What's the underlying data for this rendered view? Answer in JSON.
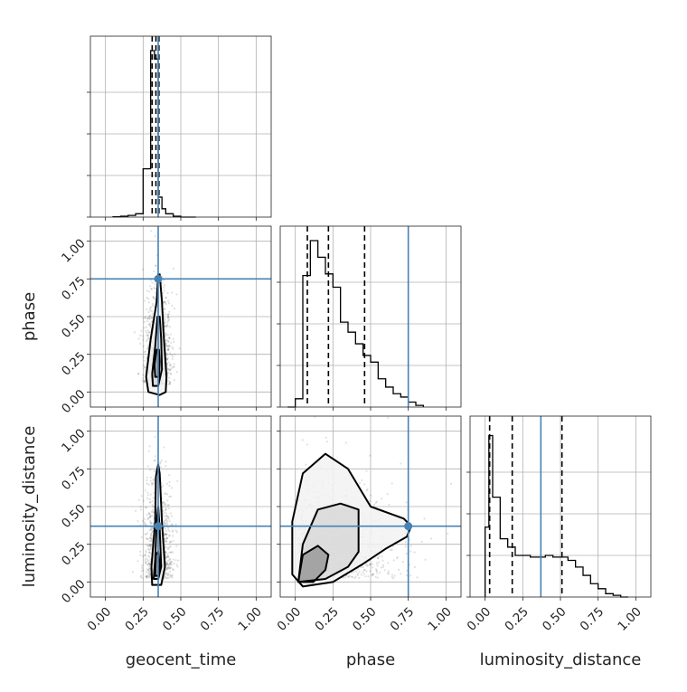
{
  "chart_data": {
    "type": "corner",
    "parameters": [
      "geocent_time",
      "phase",
      "luminosity_distance"
    ],
    "axis_labels": {
      "geocent_time": "geocent_time",
      "phase": "phase",
      "luminosity_distance": "luminosity_distance"
    },
    "range": [
      -0.1,
      1.1
    ],
    "ticks": [
      0.0,
      0.25,
      0.5,
      0.75,
      1.0
    ],
    "tick_labels": [
      "0.00",
      "0.25",
      "0.50",
      "0.75",
      "1.00"
    ],
    "grid": true,
    "truths": {
      "geocent_time": 0.35,
      "phase": 0.75,
      "luminosity_distance": 0.37
    },
    "truth_color": "#4682b4",
    "histograms": {
      "geocent_time": {
        "bin_edges": [
          0.05,
          0.1,
          0.15,
          0.2,
          0.25,
          0.3,
          0.325,
          0.35,
          0.375,
          0.4,
          0.45,
          0.5,
          0.55,
          0.6
        ],
        "counts": [
          0.002,
          0.005,
          0.01,
          0.02,
          0.29,
          1.0,
          0.95,
          0.12,
          0.05,
          0.02,
          0.005,
          0.0,
          0.0
        ],
        "quantiles": [
          0.31,
          0.335,
          0.355
        ]
      },
      "phase": {
        "bin_edges": [
          -0.05,
          0.0,
          0.05,
          0.1,
          0.15,
          0.2,
          0.25,
          0.3,
          0.35,
          0.4,
          0.45,
          0.5,
          0.55,
          0.6,
          0.65,
          0.7,
          0.75,
          0.8,
          0.85
        ],
        "counts": [
          0.0,
          0.05,
          0.79,
          1.0,
          0.9,
          0.8,
          0.72,
          0.51,
          0.45,
          0.38,
          0.31,
          0.27,
          0.17,
          0.12,
          0.08,
          0.06,
          0.03,
          0.01
        ],
        "quantiles": [
          0.08,
          0.22,
          0.46
        ]
      },
      "luminosity_distance": {
        "bin_edges": [
          0.0,
          0.025,
          0.05,
          0.1,
          0.15,
          0.2,
          0.25,
          0.3,
          0.35,
          0.4,
          0.45,
          0.5,
          0.55,
          0.6,
          0.65,
          0.7,
          0.75,
          0.8,
          0.85,
          0.9,
          0.95
        ],
        "counts": [
          0.42,
          0.97,
          0.6,
          0.35,
          0.3,
          0.25,
          0.25,
          0.24,
          0.24,
          0.25,
          0.24,
          0.24,
          0.22,
          0.18,
          0.13,
          0.08,
          0.05,
          0.02,
          0.01,
          0.0
        ],
        "quantiles": [
          0.03,
          0.18,
          0.51
        ]
      }
    },
    "scatter_2d": [
      {
        "x": "geocent_time",
        "y": "phase",
        "contours": [
          [
            [
              0.285,
              0.0
            ],
            [
              0.36,
              -0.02
            ],
            [
              0.4,
              0.0
            ],
            [
              0.405,
              0.1
            ],
            [
              0.385,
              0.4
            ],
            [
              0.375,
              0.6
            ],
            [
              0.36,
              0.78
            ],
            [
              0.35,
              0.78
            ],
            [
              0.34,
              0.6
            ],
            [
              0.3,
              0.35
            ],
            [
              0.27,
              0.1
            ]
          ],
          [
            [
              0.315,
              0.04
            ],
            [
              0.35,
              0.04
            ],
            [
              0.375,
              0.15
            ],
            [
              0.37,
              0.35
            ],
            [
              0.36,
              0.5
            ],
            [
              0.345,
              0.5
            ],
            [
              0.33,
              0.3
            ],
            [
              0.31,
              0.12
            ]
          ],
          [
            [
              0.33,
              0.1
            ],
            [
              0.355,
              0.1
            ],
            [
              0.36,
              0.2
            ],
            [
              0.355,
              0.28
            ],
            [
              0.34,
              0.28
            ],
            [
              0.325,
              0.18
            ]
          ]
        ]
      },
      {
        "x": "geocent_time",
        "y": "luminosity_distance",
        "contours": [
          [
            [
              0.31,
              -0.02
            ],
            [
              0.37,
              -0.02
            ],
            [
              0.395,
              0.1
            ],
            [
              0.375,
              0.4
            ],
            [
              0.36,
              0.72
            ],
            [
              0.35,
              0.78
            ],
            [
              0.335,
              0.7
            ],
            [
              0.33,
              0.4
            ],
            [
              0.305,
              0.1
            ]
          ],
          [
            [
              0.32,
              0.02
            ],
            [
              0.35,
              0.02
            ],
            [
              0.37,
              0.1
            ],
            [
              0.36,
              0.35
            ],
            [
              0.35,
              0.5
            ],
            [
              0.34,
              0.4
            ],
            [
              0.33,
              0.15
            ]
          ],
          [
            [
              0.33,
              0.04
            ],
            [
              0.355,
              0.04
            ],
            [
              0.36,
              0.12
            ],
            [
              0.35,
              0.2
            ],
            [
              0.335,
              0.18
            ]
          ]
        ]
      },
      {
        "x": "phase",
        "y": "luminosity_distance",
        "contours": [
          [
            [
              -0.02,
              0.05
            ],
            [
              0.05,
              -0.03
            ],
            [
              0.25,
              0.0
            ],
            [
              0.45,
              0.12
            ],
            [
              0.6,
              0.22
            ],
            [
              0.74,
              0.3
            ],
            [
              0.77,
              0.37
            ],
            [
              0.72,
              0.42
            ],
            [
              0.5,
              0.5
            ],
            [
              0.35,
              0.75
            ],
            [
              0.2,
              0.85
            ],
            [
              0.05,
              0.72
            ],
            [
              -0.02,
              0.4
            ]
          ],
          [
            [
              0.02,
              0.0
            ],
            [
              0.2,
              0.02
            ],
            [
              0.35,
              0.1
            ],
            [
              0.42,
              0.2
            ],
            [
              0.42,
              0.48
            ],
            [
              0.3,
              0.52
            ],
            [
              0.15,
              0.48
            ],
            [
              0.05,
              0.25
            ]
          ],
          [
            [
              0.02,
              0.0
            ],
            [
              0.12,
              0.0
            ],
            [
              0.2,
              0.08
            ],
            [
              0.22,
              0.18
            ],
            [
              0.15,
              0.24
            ],
            [
              0.05,
              0.18
            ]
          ]
        ]
      }
    ]
  }
}
